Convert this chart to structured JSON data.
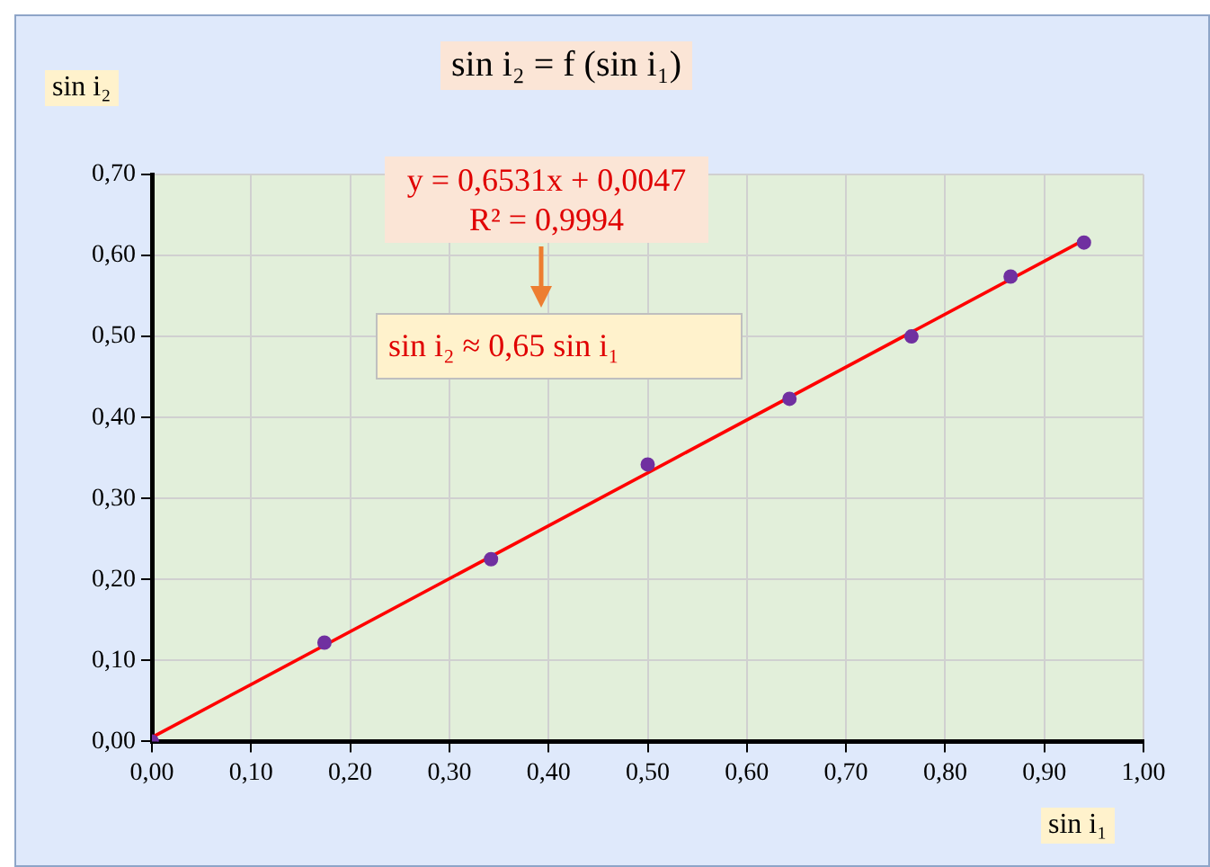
{
  "chart_data": {
    "type": "scatter",
    "title": "sin i₂ = f (sin i₁)",
    "xlabel": "sin i₁",
    "ylabel": "sin i₂",
    "annotations": [
      "y = 0,6531x + 0,0047",
      "R² = 0,9994",
      "sin i₂ ≈ 0,65 sin i₁"
    ],
    "series": [
      {
        "type": "scatter",
        "color": "#7030a0",
        "marker": "circle",
        "x": [
          0,
          0.174,
          0.342,
          0.5,
          0.643,
          0.766,
          0.866,
          0.94
        ],
        "values": [
          0,
          0.122,
          0.225,
          0.342,
          0.423,
          0.5,
          0.574,
          0.616
        ]
      },
      {
        "type": "line",
        "color": "#ff0000",
        "marker": "none",
        "line_style": "solid",
        "x": [
          0,
          0.94
        ],
        "values": [
          0.005,
          0.619
        ]
      }
    ],
    "xlim": [
      0,
      1
    ],
    "ylim": [
      0,
      0.7
    ],
    "xticks": [
      {
        "value": 0,
        "label": "0,00"
      },
      {
        "value": 0.1,
        "label": "0,10"
      },
      {
        "value": 0.2,
        "label": "0,20"
      },
      {
        "value": 0.3,
        "label": "0,30"
      },
      {
        "value": 0.4,
        "label": "0,40"
      },
      {
        "value": 0.5,
        "label": "0,50"
      },
      {
        "value": 0.6,
        "label": "0,60"
      },
      {
        "value": 0.7,
        "label": "0,70"
      },
      {
        "value": 0.8,
        "label": "0,80"
      },
      {
        "value": 0.9,
        "label": "0,90"
      },
      {
        "value": 1,
        "label": "1,00"
      }
    ],
    "yticks": [
      {
        "value": 0,
        "label": "0,00"
      },
      {
        "value": 0.1,
        "label": "0,10"
      },
      {
        "value": 0.2,
        "label": "0,20"
      },
      {
        "value": 0.3,
        "label": "0,30"
      },
      {
        "value": 0.4,
        "label": "0,40"
      },
      {
        "value": 0.5,
        "label": "0,50"
      },
      {
        "value": 0.6,
        "label": "0,60"
      },
      {
        "value": 0.7,
        "label": "0,70"
      }
    ],
    "grid": true
  }
}
